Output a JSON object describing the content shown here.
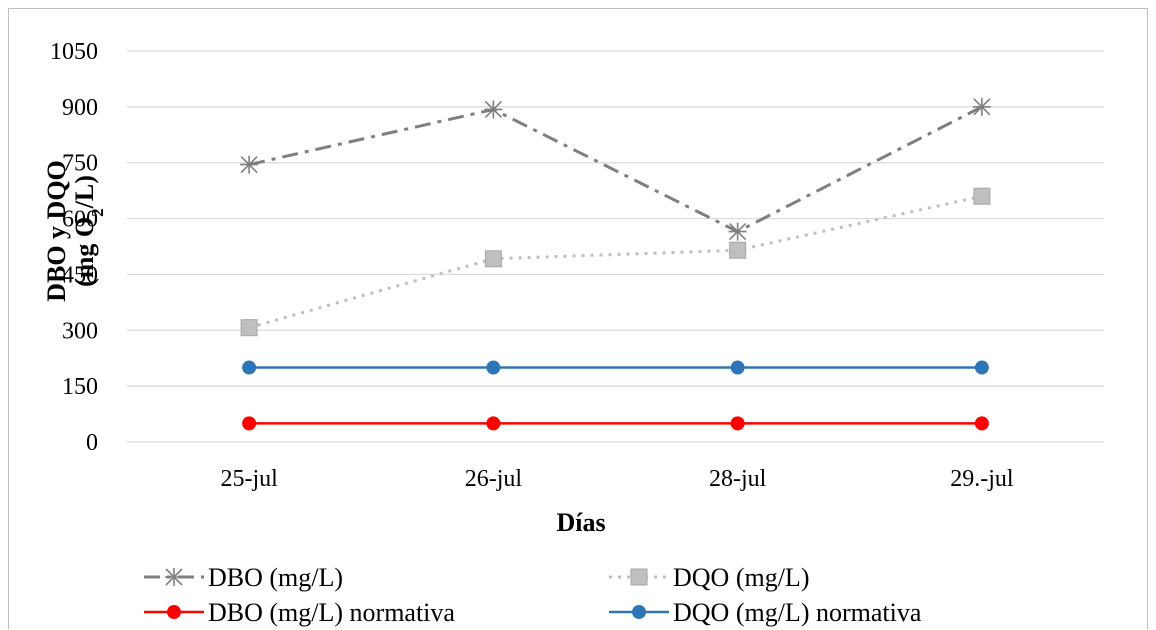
{
  "chart_data": {
    "type": "line",
    "title": "",
    "xlabel": "Días",
    "ylabel_line1": "DBO y DQO",
    "ylabel_line2_prefix": "(mg O",
    "ylabel_line2_sub": "2",
    "ylabel_line2_suffix": "/L)",
    "categories": [
      "25-jul",
      "26-jul",
      "28-jul",
      "29.-jul"
    ],
    "ylim": [
      0,
      1050
    ],
    "yticks": [
      0,
      150,
      300,
      450,
      600,
      750,
      900,
      1050
    ],
    "grid": true,
    "legend_position": "bottom",
    "series": [
      {
        "name": "DBO (mg/L)",
        "values": [
          745,
          893,
          565,
          900
        ],
        "color": "#7f7f7f",
        "dash": "dash-dot",
        "marker": "asterisk"
      },
      {
        "name": "DQO (mg/L)",
        "values": [
          307,
          492,
          515,
          660
        ],
        "color": "#bfbfbf",
        "dash": "dot",
        "marker": "square"
      },
      {
        "name": "DBO (mg/L) normativa",
        "values": [
          50,
          50,
          50,
          50
        ],
        "color": "#ff0000",
        "dash": "solid",
        "marker": "circle"
      },
      {
        "name": "DQO (mg/L) normativa",
        "values": [
          200,
          200,
          200,
          200
        ],
        "color": "#2e75b6",
        "dash": "solid",
        "marker": "circle"
      }
    ]
  }
}
